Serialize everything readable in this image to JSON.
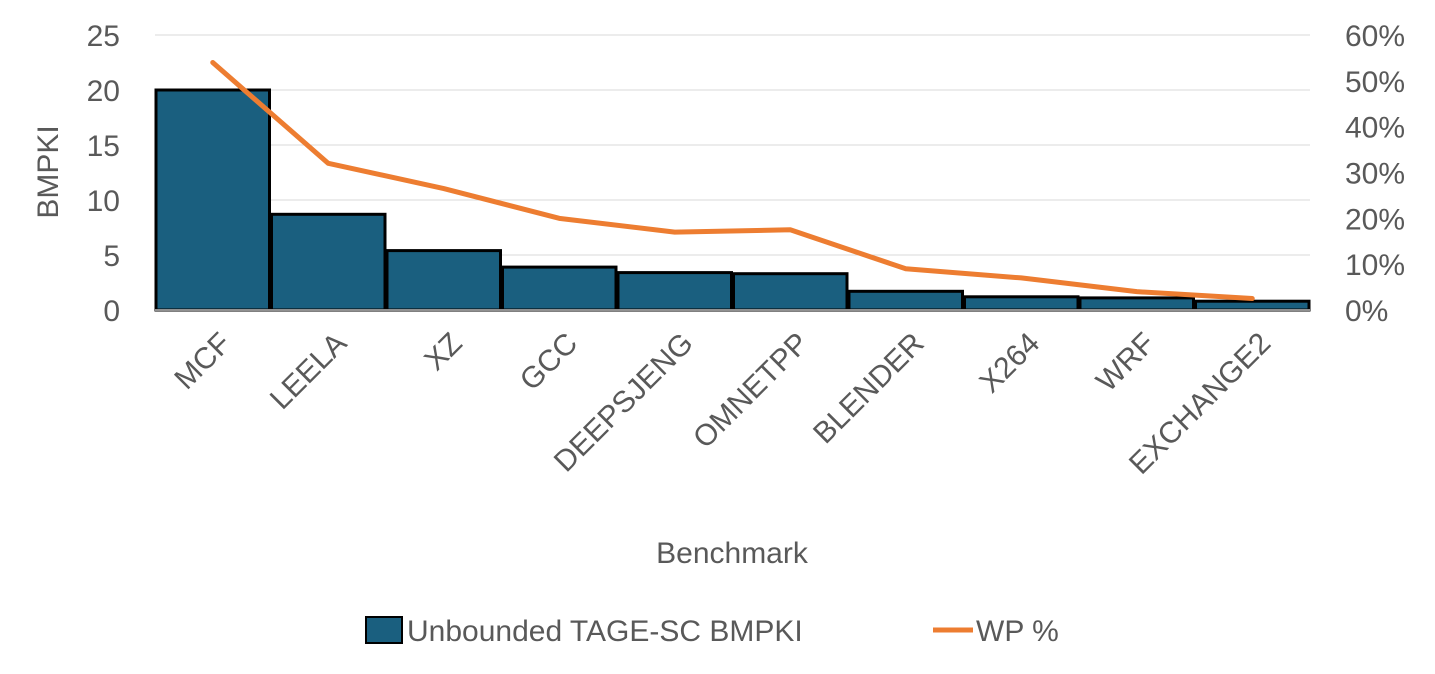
{
  "chart_data": {
    "type": "bar",
    "categories": [
      "MCF",
      "LEELA",
      "XZ",
      "GCC",
      "DEEPSJENG",
      "OMNETPP",
      "BLENDER",
      "X264",
      "WRF",
      "EXCHANGE2"
    ],
    "series": [
      {
        "name": "Unbounded TAGE-SC BMPKI",
        "type": "bar",
        "axis": "left",
        "color": "#1a5f7f",
        "values": [
          20.0,
          8.7,
          5.4,
          3.9,
          3.4,
          3.3,
          1.7,
          1.2,
          1.1,
          0.8
        ]
      },
      {
        "name": "WP %",
        "type": "line",
        "axis": "right",
        "color": "#ed7d31",
        "values": [
          54.0,
          32.0,
          26.5,
          20.0,
          17.0,
          17.5,
          9.0,
          7.0,
          4.0,
          2.5
        ]
      }
    ],
    "xlabel": "Benchmark",
    "ylabel": "BMPKI",
    "ylim": [
      0,
      25
    ],
    "y_ticks": [
      "0",
      "5",
      "10",
      "15",
      "20",
      "25"
    ],
    "y2lim": [
      0,
      60
    ],
    "y2_ticks": [
      "0%",
      "10%",
      "20%",
      "30%",
      "40%",
      "50%",
      "60%"
    ],
    "grid": true,
    "legend_position": "bottom"
  }
}
